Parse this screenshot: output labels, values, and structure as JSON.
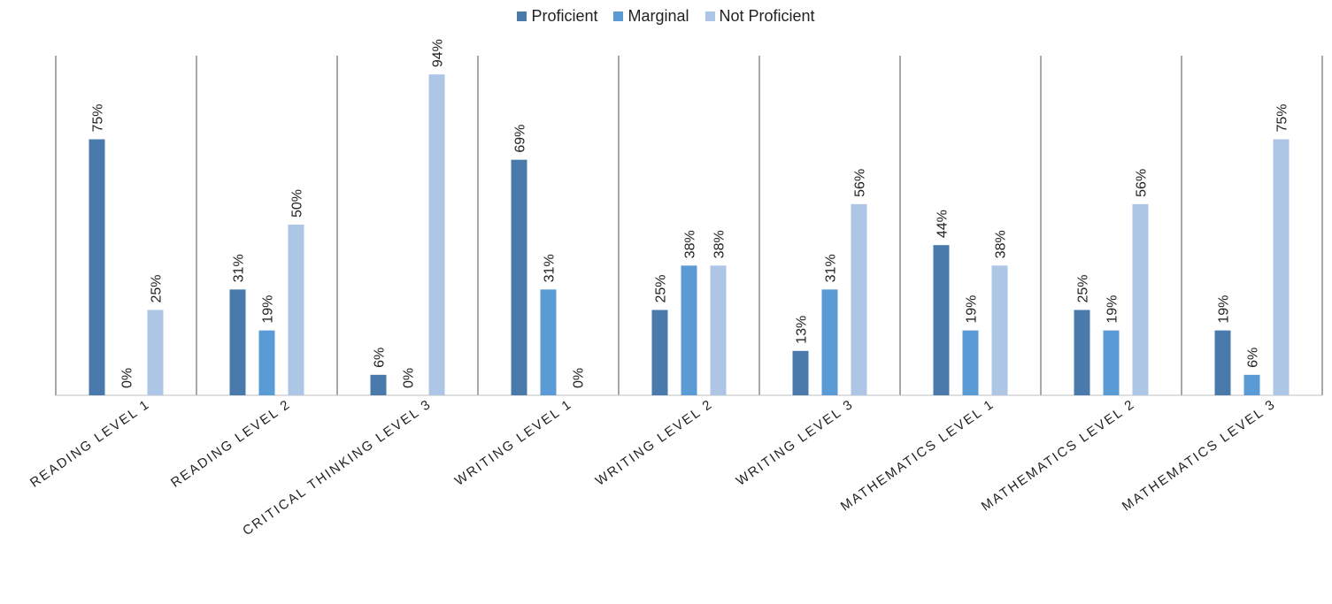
{
  "chart_data": {
    "type": "bar",
    "categories": [
      "READING LEVEL 1",
      "READING LEVEL 2",
      "CRITICAL THINKING LEVEL 3",
      "WRITING LEVEL 1",
      "WRITING LEVEL 2",
      "WRITING LEVEL 3",
      "MATHEMATICS LEVEL 1",
      "MATHEMATICS LEVEL 2",
      "MATHEMATICS LEVEL 3"
    ],
    "series": [
      {
        "name": "Proficient",
        "color": "#4a7aac",
        "values": [
          75,
          31,
          6,
          69,
          25,
          13,
          44,
          25,
          19
        ]
      },
      {
        "name": "Marginal",
        "color": "#5b9bd5",
        "values": [
          0,
          19,
          0,
          31,
          38,
          31,
          19,
          19,
          6
        ]
      },
      {
        "name": "Not Proficient",
        "color": "#adc6e5",
        "values": [
          25,
          50,
          94,
          0,
          38,
          56,
          38,
          56,
          75
        ]
      }
    ],
    "value_suffix": "%",
    "ylim": [
      0,
      100
    ],
    "grid": false,
    "legend_position": "top",
    "title": "",
    "xlabel": "",
    "ylabel": ""
  }
}
